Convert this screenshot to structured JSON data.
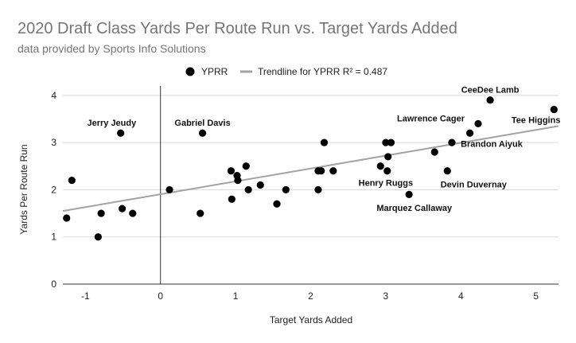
{
  "chart_data": {
    "type": "scatter",
    "title": "2020 Draft Class Yards Per Route Run vs. Target Yards Added",
    "subtitle": "data provided by Sports Info Solutions",
    "xlabel": "Target Yards Added",
    "ylabel": "Yards Per Route Run",
    "xlim": [
      -1.3,
      5.3
    ],
    "ylim": [
      0,
      4.2
    ],
    "xticks": [
      -1,
      0,
      1,
      2,
      3,
      4,
      5
    ],
    "yticks": [
      0,
      1,
      2,
      3,
      4
    ],
    "legend_position": "top",
    "legend": {
      "series_label": "YPRR",
      "trend_label": "Trendline for YPRR R² = 0.487"
    },
    "colors": {
      "points": "#000000",
      "trendline": "#a3a3a3",
      "grid": "#d9d9d9",
      "zero_line": "#333333"
    },
    "trendline": {
      "x": [
        -1.3,
        5.3
      ],
      "y": [
        1.55,
        3.35
      ]
    },
    "points": [
      {
        "x": -1.25,
        "y": 1.4
      },
      {
        "x": -1.18,
        "y": 2.2
      },
      {
        "x": -0.83,
        "y": 1.0
      },
      {
        "x": -0.79,
        "y": 1.5
      },
      {
        "x": -0.53,
        "y": 3.2
      },
      {
        "x": -0.51,
        "y": 1.6
      },
      {
        "x": -0.37,
        "y": 1.5
      },
      {
        "x": 0.12,
        "y": 2.0
      },
      {
        "x": 0.53,
        "y": 1.5
      },
      {
        "x": 0.56,
        "y": 3.2
      },
      {
        "x": 0.94,
        "y": 2.4
      },
      {
        "x": 0.95,
        "y": 1.8
      },
      {
        "x": 1.02,
        "y": 2.3
      },
      {
        "x": 1.03,
        "y": 2.2
      },
      {
        "x": 1.14,
        "y": 2.5
      },
      {
        "x": 1.17,
        "y": 2.0
      },
      {
        "x": 1.33,
        "y": 2.1
      },
      {
        "x": 1.55,
        "y": 1.7
      },
      {
        "x": 1.67,
        "y": 2.0
      },
      {
        "x": 2.1,
        "y": 2.0
      },
      {
        "x": 2.1,
        "y": 2.4
      },
      {
        "x": 2.14,
        "y": 2.4
      },
      {
        "x": 2.18,
        "y": 3.0
      },
      {
        "x": 2.3,
        "y": 2.4
      },
      {
        "x": 2.93,
        "y": 2.5
      },
      {
        "x": 3.0,
        "y": 3.0
      },
      {
        "x": 3.02,
        "y": 2.4
      },
      {
        "x": 3.03,
        "y": 2.7
      },
      {
        "x": 3.07,
        "y": 3.0
      },
      {
        "x": 3.31,
        "y": 1.9
      },
      {
        "x": 3.65,
        "y": 2.8
      },
      {
        "x": 3.82,
        "y": 2.4
      },
      {
        "x": 3.88,
        "y": 3.0
      },
      {
        "x": 4.12,
        "y": 3.2
      },
      {
        "x": 4.23,
        "y": 3.4
      },
      {
        "x": 4.39,
        "y": 3.9
      },
      {
        "x": 5.24,
        "y": 3.7
      }
    ],
    "annotations": [
      {
        "text": "Jerry Jeudy",
        "x": -0.65,
        "y": 3.42
      },
      {
        "text": "Gabriel Davis",
        "x": 0.56,
        "y": 3.42
      },
      {
        "text": "CeeDee Lamb",
        "x": 4.39,
        "y": 4.12
      },
      {
        "text": "Lawrence Cager",
        "x": 3.6,
        "y": 3.52
      },
      {
        "text": "Tee Higgins",
        "x": 5.0,
        "y": 3.48
      },
      {
        "text": "Brandon Aiyuk",
        "x": 4.41,
        "y": 2.98
      },
      {
        "text": "Henry Ruggs",
        "x": 3.0,
        "y": 2.15
      },
      {
        "text": "Devin Duvernay",
        "x": 4.17,
        "y": 2.12
      },
      {
        "text": "Marquez Callaway",
        "x": 3.38,
        "y": 1.62
      }
    ]
  }
}
